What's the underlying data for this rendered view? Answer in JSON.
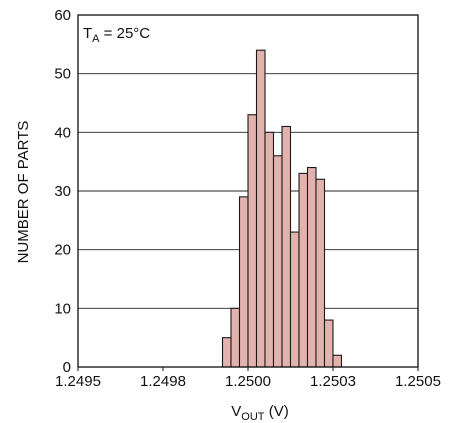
{
  "chart_data": {
    "type": "bar",
    "x_tick_labels": [
      "1.2495",
      "1.2498",
      "1.2500",
      "1.2503",
      "1.2505"
    ],
    "y_tick_labels": [
      "0",
      "10",
      "20",
      "30",
      "40",
      "50",
      "60"
    ],
    "ylim": [
      0,
      60
    ],
    "grid": "horizontal",
    "ylabel": "NUMBER OF PARTS",
    "xlabel": {
      "main": "V",
      "sub": "OUT",
      "tail": " (V)"
    },
    "annotation": {
      "main": "T",
      "sub": "A",
      "tail": " = 25°C"
    },
    "bar_color": "#e2b3ae",
    "bar_edge_color": "#1a1a1a",
    "bins": [
      {
        "index": 17,
        "value": 5
      },
      {
        "index": 18,
        "value": 10
      },
      {
        "index": 19,
        "value": 29
      },
      {
        "index": 20,
        "value": 43
      },
      {
        "index": 21,
        "value": 54
      },
      {
        "index": 22,
        "value": 40
      },
      {
        "index": 23,
        "value": 36
      },
      {
        "index": 24,
        "value": 41
      },
      {
        "index": 25,
        "value": 23
      },
      {
        "index": 26,
        "value": 33
      },
      {
        "index": 27,
        "value": 34
      },
      {
        "index": 28,
        "value": 32
      },
      {
        "index": 29,
        "value": 8
      },
      {
        "index": 30,
        "value": 2
      }
    ],
    "total_bins": 40
  }
}
